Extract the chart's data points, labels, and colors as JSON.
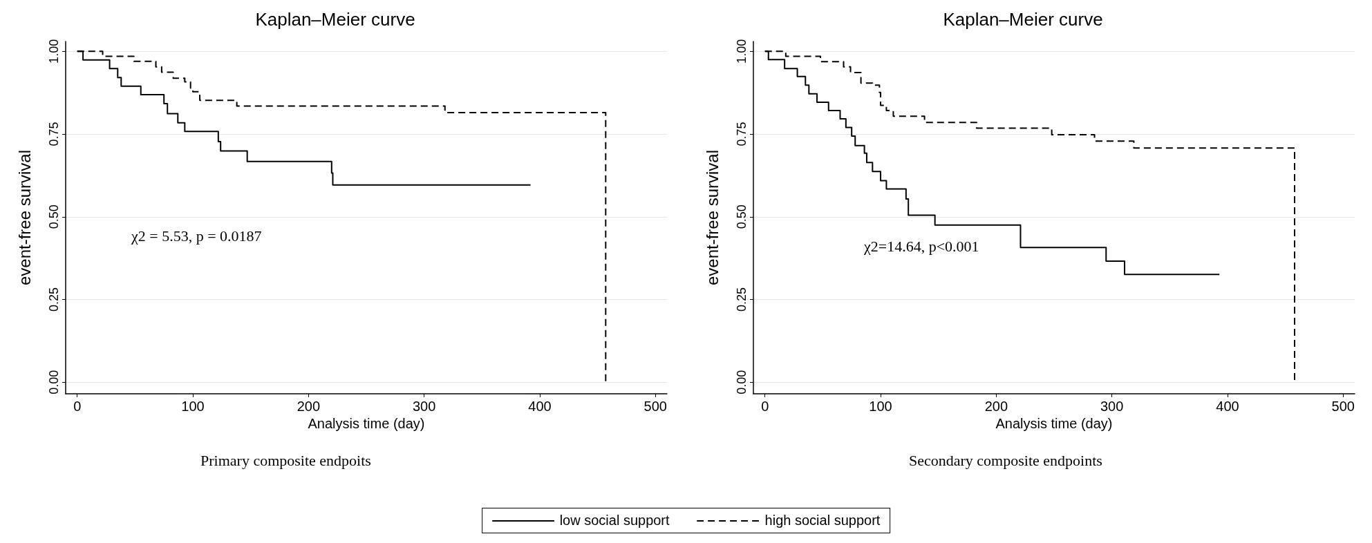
{
  "chart_data": [
    {
      "type": "step",
      "title": "Kaplan–Meier curve",
      "xlabel": "Analysis time (day)",
      "ylabel": "event-free survival",
      "annotations": [
        "χ2 = 5.53, p = 0.0187",
        "Primary composite endpoits"
      ],
      "xlim": [
        -10,
        510
      ],
      "xticks": [
        0,
        100,
        200,
        300,
        400,
        500
      ],
      "ylim": [
        -0.035,
        1.03
      ],
      "yticks": [
        {
          "value": 0,
          "label": "0.00"
        },
        {
          "value": 0.25,
          "label": "0.25"
        },
        {
          "value": 0.5,
          "label": "0.50"
        },
        {
          "value": 0.75,
          "label": "0.75"
        },
        {
          "value": 1,
          "label": "1.00"
        }
      ],
      "grid": "y",
      "legend": "bottom",
      "marker": "none",
      "series": [
        {
          "name": "low social support",
          "color": "#000000",
          "line_style": "solid",
          "x": [
            0,
            5,
            28,
            35,
            38,
            55,
            75,
            78,
            87,
            93,
            122,
            124,
            147,
            220,
            221,
            392
          ],
          "values": [
            1,
            0.974,
            0.948,
            0.921,
            0.895,
            0.869,
            0.842,
            0.812,
            0.784,
            0.758,
            0.727,
            0.699,
            0.667,
            0.632,
            0.596,
            0.596
          ]
        },
        {
          "name": "high social support",
          "color": "#000000",
          "line_style": "dashed",
          "x": [
            0,
            22,
            49,
            68,
            73,
            83,
            93,
            98,
            100,
            105,
            106,
            138,
            318,
            457,
            457
          ],
          "values": [
            1,
            0.985,
            0.97,
            0.953,
            0.937,
            0.919,
            0.908,
            0.889,
            0.878,
            0.867,
            0.852,
            0.835,
            0.815,
            0.815,
            0
          ]
        }
      ]
    },
    {
      "type": "step",
      "title": "Kaplan–Meier curve",
      "xlabel": "Analysis time (day)",
      "ylabel": "event-free survival",
      "annotations": [
        "χ2=14.64, p<0.001",
        "Secondary composite endpoints"
      ],
      "xlim": [
        -10,
        510
      ],
      "xticks": [
        0,
        100,
        200,
        300,
        400,
        500
      ],
      "ylim": [
        -0.035,
        1.03
      ],
      "yticks": [
        {
          "value": 0,
          "label": "0.00"
        },
        {
          "value": 0.25,
          "label": "0.25"
        },
        {
          "value": 0.5,
          "label": "0.50"
        },
        {
          "value": 0.75,
          "label": "0.75"
        },
        {
          "value": 1,
          "label": "1.00"
        }
      ],
      "grid": "y",
      "marker": "none",
      "series": [
        {
          "color": "#000000",
          "line_style": "solid",
          "x": [
            0,
            3,
            17,
            28,
            35,
            38,
            45,
            55,
            65,
            70,
            75,
            78,
            86,
            88,
            93,
            100,
            105,
            122,
            124,
            147,
            221,
            295,
            311,
            393
          ],
          "values": [
            1,
            0.975,
            0.948,
            0.924,
            0.898,
            0.872,
            0.846,
            0.821,
            0.796,
            0.77,
            0.744,
            0.715,
            0.692,
            0.664,
            0.637,
            0.609,
            0.584,
            0.554,
            0.505,
            0.475,
            0.407,
            0.366,
            0.326,
            0.326
          ]
        },
        {
          "color": "#000000",
          "line_style": "dashed",
          "x": [
            0,
            18,
            48,
            68,
            74,
            83,
            93,
            99,
            100,
            105,
            111,
            138,
            183,
            248,
            285,
            319,
            458,
            458
          ],
          "values": [
            1,
            0.985,
            0.969,
            0.953,
            0.936,
            0.904,
            0.898,
            0.876,
            0.837,
            0.821,
            0.804,
            0.785,
            0.768,
            0.748,
            0.729,
            0.708,
            0.708,
            0
          ]
        }
      ]
    }
  ]
}
